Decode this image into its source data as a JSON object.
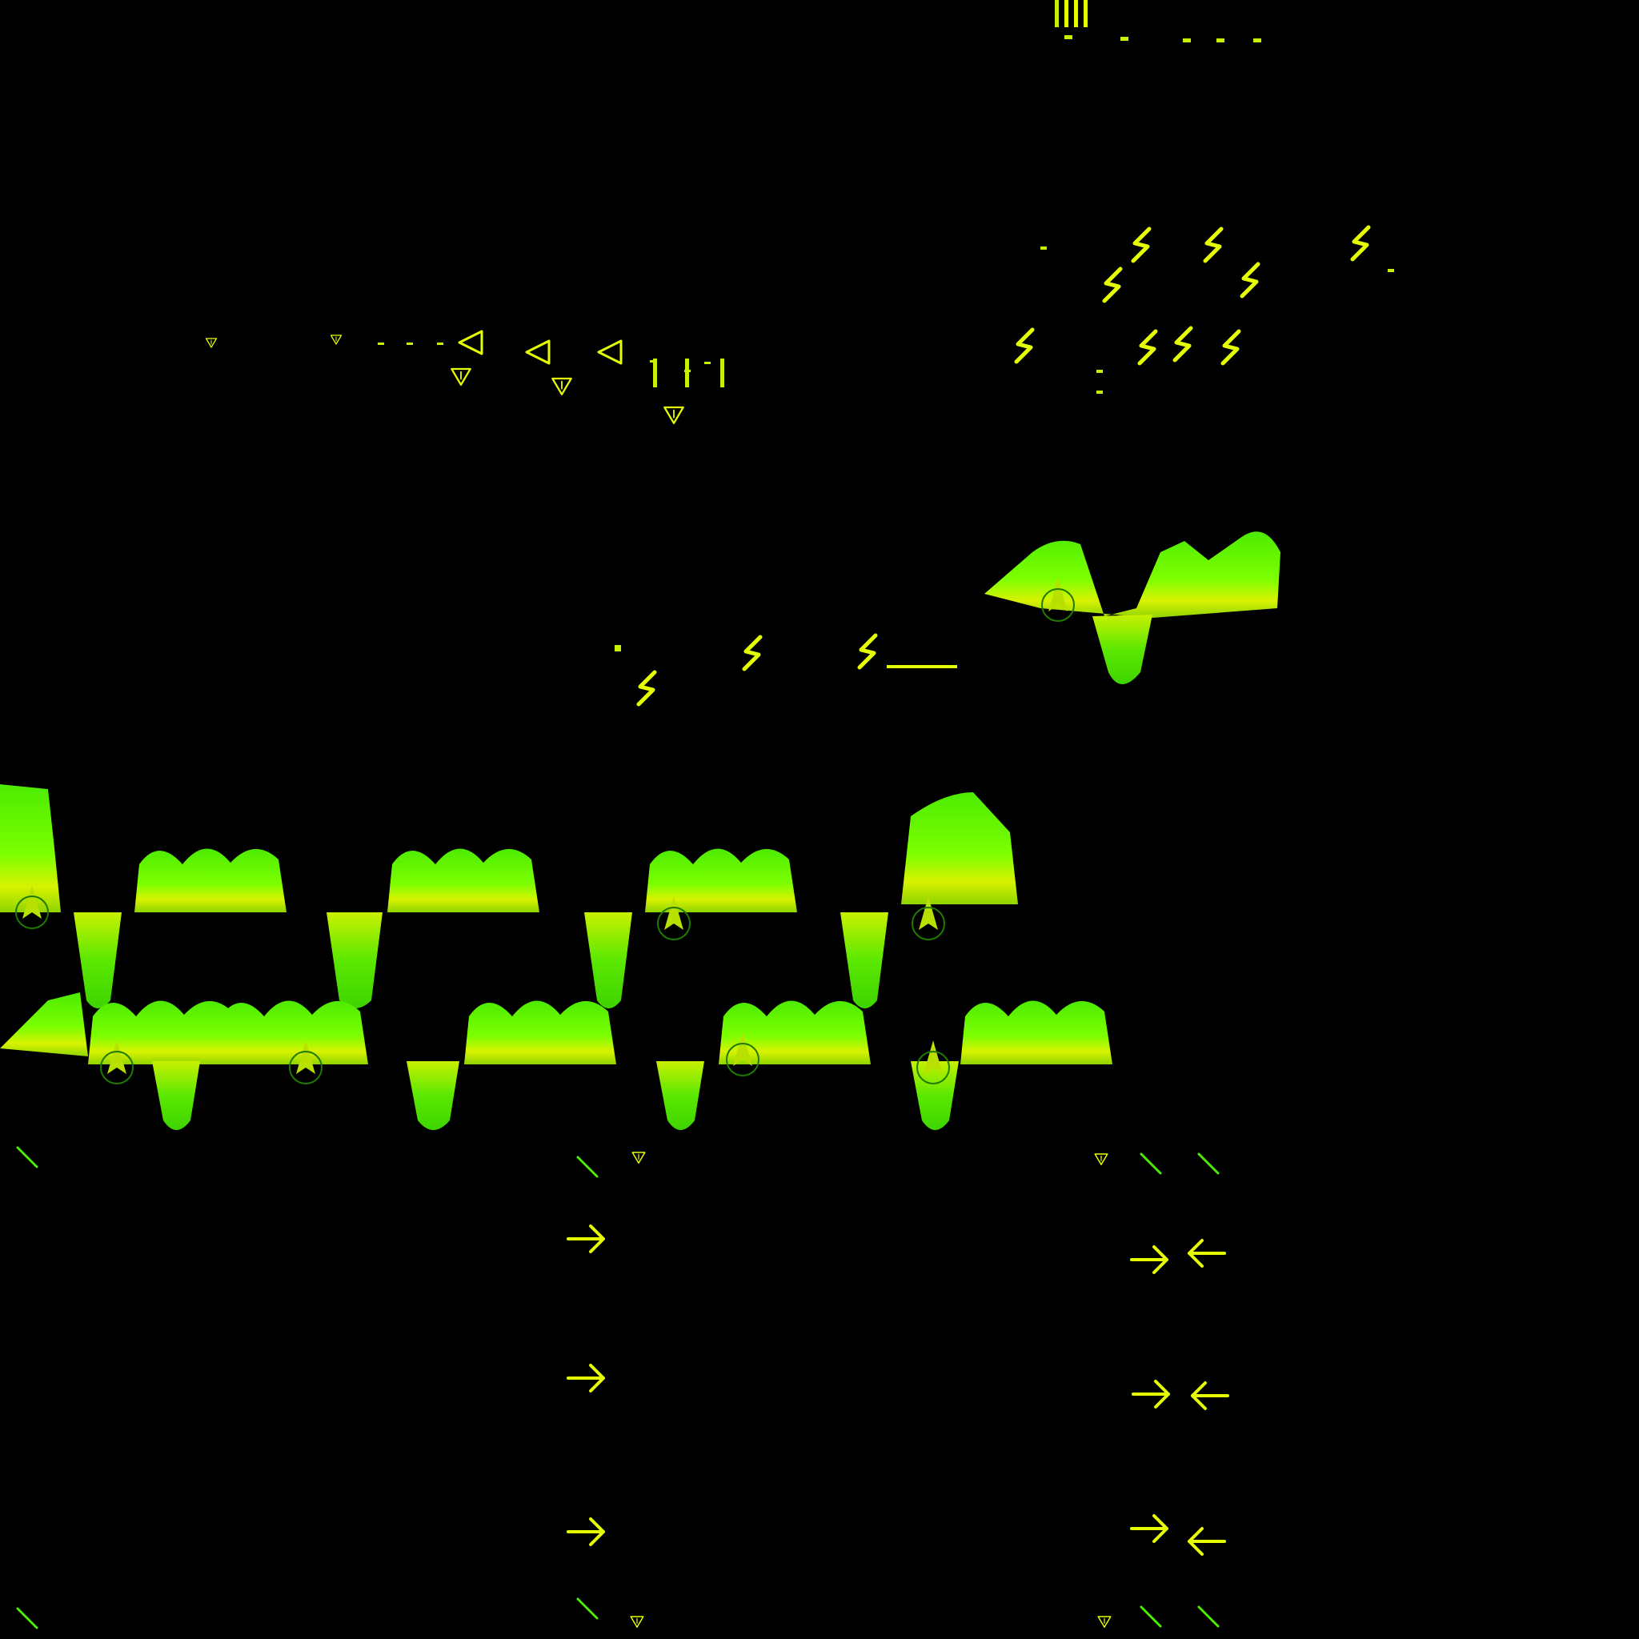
{
  "scene": {
    "background": "#000000",
    "palette": {
      "lime": "#7CFF00",
      "green": "#4DEB00",
      "yellow": "#E6FF00",
      "yellow_green": "#C8F000",
      "dark_green": "#1E7A00"
    },
    "icons": {
      "zigzag": "lightning-zigzag-icon",
      "triangle": "down-triangle-marker-icon",
      "arrow_right": "arrow-right-icon",
      "arrow_left": "arrow-left-icon",
      "spark": "green-spark-icon",
      "spike": "up-spike-marker-icon"
    }
  }
}
